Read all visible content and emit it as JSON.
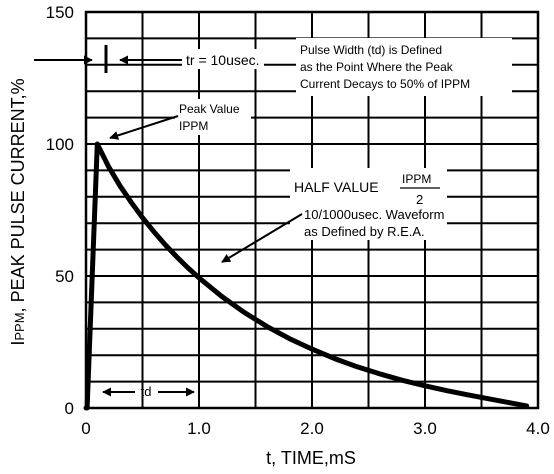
{
  "chart_data": {
    "type": "line",
    "xlabel": "t, TIME,mS",
    "ylabel_prefix": "I",
    "ylabel_sub": "PPM",
    "ylabel_rest": ", PEAK PULSE CURRENT,%",
    "xlim": [
      0,
      4.0
    ],
    "ylim": [
      0,
      150
    ],
    "x_ticks": [
      "0",
      "1.0",
      "2.0",
      "3.0",
      "4.0"
    ],
    "y_ticks": [
      "0",
      "50",
      "100",
      "150"
    ],
    "grid": true,
    "series": [
      {
        "x": [
          0,
          0.01,
          0.1,
          0.2,
          0.3,
          0.4,
          0.5,
          0.6,
          0.7,
          0.8,
          0.9,
          1.0,
          1.2,
          1.4,
          1.6,
          1.8,
          2.0,
          2.2,
          2.4,
          2.6,
          2.8,
          3.0,
          3.2,
          3.4,
          3.6,
          3.8,
          3.9
        ],
        "y": [
          0,
          0,
          100,
          91.4,
          84.2,
          77.9,
          72.1,
          66.8,
          61.9,
          57.4,
          53.2,
          49.3,
          42.3,
          36.2,
          30.9,
          26.3,
          22.3,
          18.7,
          15.6,
          12.9,
          10.5,
          8.4,
          6.5,
          4.8,
          3.2,
          1.6,
          0.8
        ]
      }
    ],
    "annotations": {
      "tr_label": "tr = 10usec.",
      "peak_line1": "Peak Value",
      "peak_line2": "IPPM",
      "pulse_line1": "Pulse Width (td) is Defined",
      "pulse_line2": "as the Point Where the Peak",
      "pulse_line3": "Current Decays to 50% of IPPM",
      "half_value": "HALF VALUE",
      "half_fraction_num": "IPPM",
      "half_fraction_den": "2",
      "waveform_line1": "10/1000usec. Waveform",
      "waveform_line2": "as Defined by R.E.A.",
      "td_label": "td"
    }
  }
}
